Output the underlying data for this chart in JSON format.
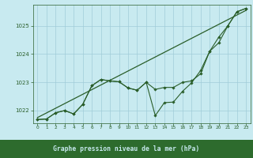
{
  "title": "Graphe pression niveau de la mer (hPa)",
  "background_color": "#c8eaf0",
  "label_bg_color": "#2d6b2d",
  "label_text_color": "#c8eaf0",
  "grid_color": "#a0ccd8",
  "line_color": "#2a5e2a",
  "marker_color": "#2a5e2a",
  "axis_color": "#2a5e2a",
  "xlim": [
    -0.5,
    23.5
  ],
  "ylim": [
    1021.55,
    1025.75
  ],
  "yticks": [
    1022,
    1023,
    1024,
    1025
  ],
  "xticks": [
    0,
    1,
    2,
    3,
    4,
    5,
    6,
    7,
    8,
    9,
    10,
    11,
    12,
    13,
    14,
    15,
    16,
    17,
    18,
    19,
    20,
    21,
    22,
    23
  ],
  "hours": [
    0,
    1,
    2,
    3,
    4,
    5,
    6,
    7,
    8,
    9,
    10,
    11,
    12,
    13,
    14,
    15,
    16,
    17,
    18,
    19,
    20,
    21,
    22,
    23
  ],
  "series1": [
    1021.68,
    1021.7,
    1021.92,
    1022.0,
    1021.88,
    1022.22,
    1022.88,
    1023.1,
    1023.05,
    1023.02,
    1022.8,
    1022.72,
    1023.0,
    1022.75,
    1022.82,
    1022.82,
    1023.0,
    1023.05,
    1023.3,
    1024.1,
    1024.6,
    1025.0,
    1025.5,
    1025.62
  ],
  "series2": [
    1021.68,
    1021.7,
    1021.92,
    1022.0,
    1021.88,
    1022.22,
    1022.88,
    1023.1,
    1023.05,
    1023.02,
    1022.8,
    1022.72,
    1023.0,
    1021.82,
    1022.28,
    1022.3,
    1022.68,
    1022.98,
    1023.42,
    1024.1,
    1024.4,
    1025.0,
    1025.5,
    1025.62
  ],
  "trend_x": [
    0,
    23
  ],
  "trend_y": [
    1021.75,
    1025.55
  ]
}
